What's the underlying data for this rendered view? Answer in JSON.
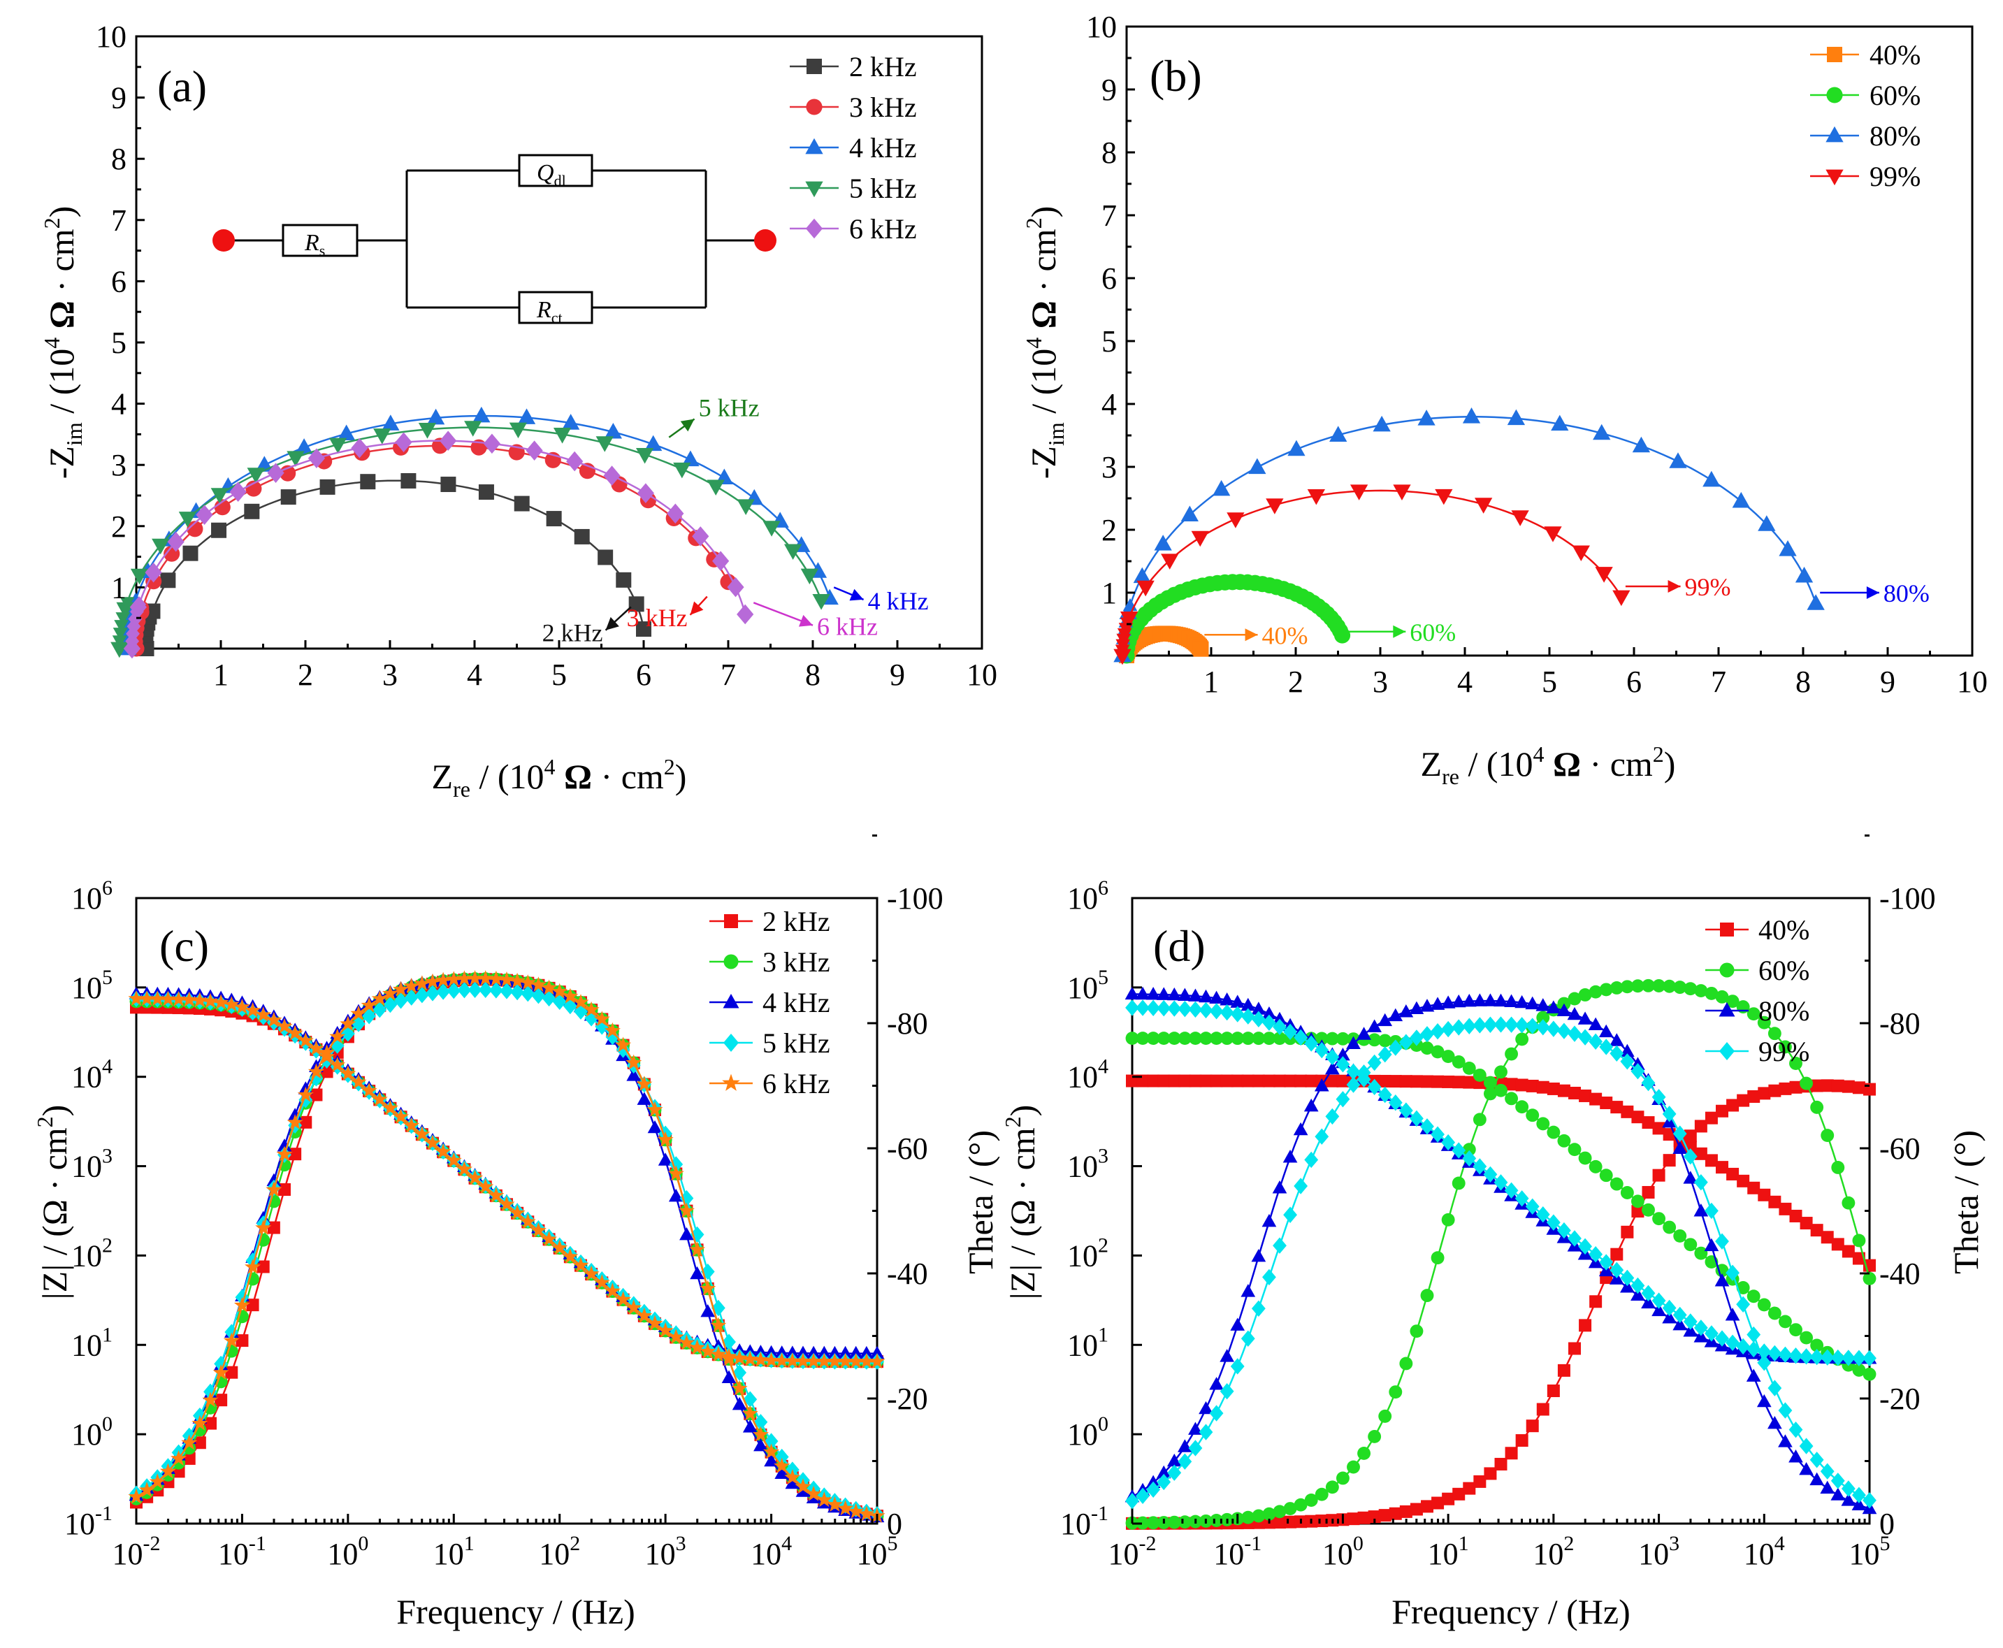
{
  "colors": {
    "2k": "#3d3d3d",
    "3k": "#e8333a",
    "4k": "#1f6fe0",
    "5k": "#2f9a5a",
    "6k": "#b76ad8",
    "p40": "#ff7f0e",
    "p60": "#22dd22",
    "p80": "#1f6fe0",
    "p99": "#ee1111",
    "d40": "#ee1111",
    "d60": "#22dd22",
    "d80": "#0000dd",
    "d99": "#00e5ee",
    "ann2k": "#111111",
    "ann3k": "#ee1111",
    "ann4k": "#0000ee",
    "ann5k": "#1a7a1a",
    "ann6k": "#cc33cc"
  },
  "chart_data": [
    {
      "id": "a",
      "type": "line",
      "panel_label": "(a)",
      "xlabel": "Zre / (10^4 Ω · cm^2)",
      "ylabel": "-Zim / (10^4 Ω · cm^2)",
      "xlim": [
        0,
        10
      ],
      "ylim": [
        0,
        10
      ],
      "x_ticks": [
        "1",
        "2",
        "3",
        "4",
        "5",
        "6",
        "7",
        "8",
        "9",
        "10"
      ],
      "y_ticks": [
        "1",
        "2",
        "3",
        "4",
        "5",
        "6",
        "7",
        "8",
        "9",
        "10"
      ],
      "circuit": {
        "rs": "R",
        "rs_sub": "s",
        "q": "Q",
        "q_sub": "dl",
        "rct": "R",
        "rct_sub": "ct"
      },
      "series": [
        {
          "name": "2 kHz",
          "marker": "square",
          "color_key": "2k",
          "endpoint": [
            6.0,
            0.78
          ],
          "arc": {
            "cx": 3.07,
            "r": 2.95,
            "k": 0.93
          },
          "n": 18
        },
        {
          "name": "3 kHz",
          "marker": "circle",
          "color_key": "3k",
          "endpoint": [
            7.0,
            1.0
          ],
          "arc": {
            "cx": 3.6,
            "r": 3.6,
            "k": 0.92
          },
          "n": 21
        },
        {
          "name": "4 kHz",
          "marker": "triangle-up",
          "color_key": "4k",
          "endpoint": [
            8.2,
            1.05
          ],
          "arc": {
            "cx": 4.1,
            "r": 4.2,
            "k": 0.905
          },
          "n": 22
        },
        {
          "name": "5 kHz",
          "marker": "triangle-down",
          "color_key": "5k",
          "endpoint": [
            8.1,
            1.3
          ],
          "arc": {
            "cx": 4.0,
            "r": 4.2,
            "k": 0.86
          },
          "n": 22
        },
        {
          "name": "6 kHz",
          "marker": "diamond",
          "color_key": "6k",
          "endpoint": [
            7.2,
            0.8
          ],
          "arc": {
            "cx": 3.6,
            "r": 3.65,
            "k": 0.93
          },
          "n": 20
        }
      ],
      "annotations": [
        {
          "text": "2 kHz",
          "color_key": "ann2k",
          "from": [
            5.85,
            0.68
          ],
          "to": [
            5.55,
            0.3
          ]
        },
        {
          "text": "3 kHz",
          "color_key": "ann3k",
          "from": [
            6.75,
            0.85
          ],
          "to": [
            6.55,
            0.55
          ]
        },
        {
          "text": "4 kHz",
          "color_key": "ann4k",
          "from": [
            8.25,
            1.0
          ],
          "to": [
            8.6,
            0.8
          ]
        },
        {
          "text": "5 kHz",
          "color_key": "ann5k",
          "from": [
            6.3,
            3.45
          ],
          "to": [
            6.6,
            3.75
          ]
        },
        {
          "text": "6 kHz",
          "color_key": "ann6k",
          "from": [
            7.3,
            0.75
          ],
          "to": [
            8.0,
            0.38
          ]
        }
      ]
    },
    {
      "id": "b",
      "type": "line",
      "panel_label": "(b)",
      "xlabel": "Zre / (10^4 Ω · cm^2)",
      "ylabel": "-Zim / (10^4 Ω · cm^2)",
      "xlim": [
        0,
        10
      ],
      "ylim": [
        0,
        10
      ],
      "x_ticks": [
        "1",
        "2",
        "3",
        "4",
        "5",
        "6",
        "7",
        "8",
        "9",
        "10"
      ],
      "y_ticks": [
        "1",
        "2",
        "3",
        "4",
        "5",
        "6",
        "7",
        "8",
        "9",
        "10"
      ],
      "series": [
        {
          "name": "40%",
          "marker": "square",
          "color_key": "p40",
          "endpoint": [
            0.88,
            0.33
          ],
          "arc": {
            "cx": 0.45,
            "r": 0.45,
            "k": 0.78
          },
          "n": 40
        },
        {
          "name": "60%",
          "marker": "circle",
          "color_key": "p60",
          "endpoint": [
            2.55,
            0.43
          ],
          "arc": {
            "cx": 1.3,
            "r": 1.3,
            "k": 0.9
          },
          "n": 40
        },
        {
          "name": "80%",
          "marker": "triangle-up",
          "color_key": "p80",
          "endpoint": [
            8.15,
            0.97
          ],
          "arc": {
            "cx": 4.1,
            "r": 4.15,
            "k": 0.915
          },
          "n": 22
        },
        {
          "name": "99%",
          "marker": "triangle-down",
          "color_key": "p99",
          "endpoint": [
            5.85,
            1.03
          ],
          "arc": {
            "cx": 3.0,
            "r": 3.05,
            "k": 0.86
          },
          "n": 16
        }
      ],
      "annotations": [
        {
          "text": "40%",
          "color_key": "p40",
          "from": [
            0.92,
            0.33
          ],
          "to": [
            1.55,
            0.33
          ]
        },
        {
          "text": "60%",
          "color_key": "p60",
          "from": [
            2.58,
            0.38
          ],
          "to": [
            3.3,
            0.38
          ]
        },
        {
          "text": "80%",
          "color_key": "ann4k",
          "from": [
            8.2,
            1.0
          ],
          "to": [
            8.9,
            1.0
          ]
        },
        {
          "text": "99%",
          "color_key": "p99",
          "from": [
            5.9,
            1.1
          ],
          "to": [
            6.55,
            1.1
          ]
        }
      ]
    },
    {
      "id": "c",
      "type": "line",
      "panel_label": "(c)",
      "xlabel": "Frequency / (Hz)",
      "ylabel": "|Z| / (Ω · cm^2)",
      "y2label": "Theta / (°)",
      "x_log_range": [
        -2,
        5
      ],
      "y_log_range": [
        -1,
        6
      ],
      "y2lim": [
        0,
        -100
      ],
      "x_ticks": [
        "-2",
        "-1",
        "0",
        "1",
        "2",
        "3",
        "4",
        "5"
      ],
      "y_ticks": [
        "-1",
        "0",
        "1",
        "2",
        "3",
        "4",
        "5",
        "6"
      ],
      "y2_ticks": [
        "0",
        "-20",
        "-40",
        "-60",
        "-80",
        "-100"
      ],
      "series": [
        {
          "name": "2 kHz",
          "marker": "square",
          "color_key": "d40",
          "Rs": 6.5,
          "Rct": 60000,
          "Cdl": 1.5e-05,
          "alpha": 0.98
        },
        {
          "name": "3 kHz",
          "marker": "circle",
          "color_key": "d60",
          "Rs": 6.5,
          "Rct": 70000,
          "Cdl": 1.5e-05,
          "alpha": 0.98
        },
        {
          "name": "4 kHz",
          "marker": "triangle-up",
          "color_key": "d80",
          "Rs": 8.0,
          "Rct": 85000,
          "Cdl": 1.4e-05,
          "alpha": 0.98
        },
        {
          "name": "5 kHz",
          "marker": "diamond",
          "color_key": "d99",
          "Rs": 6.5,
          "Rct": 75000,
          "Cdl": 1.6e-05,
          "alpha": 0.96
        },
        {
          "name": "6 kHz",
          "marker": "star",
          "color_key": "p40",
          "Rs": 6.5,
          "Rct": 75000,
          "Cdl": 1.5e-05,
          "alpha": 0.98
        }
      ]
    },
    {
      "id": "d",
      "type": "line",
      "panel_label": "(d)",
      "xlabel": "Frequency / (Hz)",
      "ylabel": "|Z| / (Ω · cm^2)",
      "y2label": "Theta / (°)",
      "x_log_range": [
        -2,
        5
      ],
      "y_log_range": [
        -1,
        6
      ],
      "y2lim": [
        0,
        -100
      ],
      "x_ticks": [
        "-2",
        "-1",
        "0",
        "1",
        "2",
        "3",
        "4",
        "5"
      ],
      "y_ticks": [
        "-1",
        "0",
        "1",
        "2",
        "3",
        "4",
        "5",
        "6"
      ],
      "y2_ticks": [
        "0",
        "-20",
        "-40",
        "-60",
        "-80",
        "-100"
      ],
      "series": [
        {
          "name": "40%",
          "marker": "square",
          "color_key": "d40",
          "Rs": 3.0,
          "Rct": 9000,
          "Cdl": 3e-07,
          "alpha": 0.8
        },
        {
          "name": "60%",
          "marker": "circle",
          "color_key": "d60",
          "Rs": 3.5,
          "Rct": 27000,
          "Cdl": 8e-07,
          "alpha": 0.97
        },
        {
          "name": "80%",
          "marker": "triangle-up",
          "color_key": "d80",
          "Rs": 7.0,
          "Rct": 85000,
          "Cdl": 1.2e-05,
          "alpha": 0.94
        },
        {
          "name": "99%",
          "marker": "diamond",
          "color_key": "d99",
          "Rs": 7.0,
          "Rct": 60000,
          "Cdl": 1.3e-05,
          "alpha": 0.9
        }
      ]
    }
  ]
}
